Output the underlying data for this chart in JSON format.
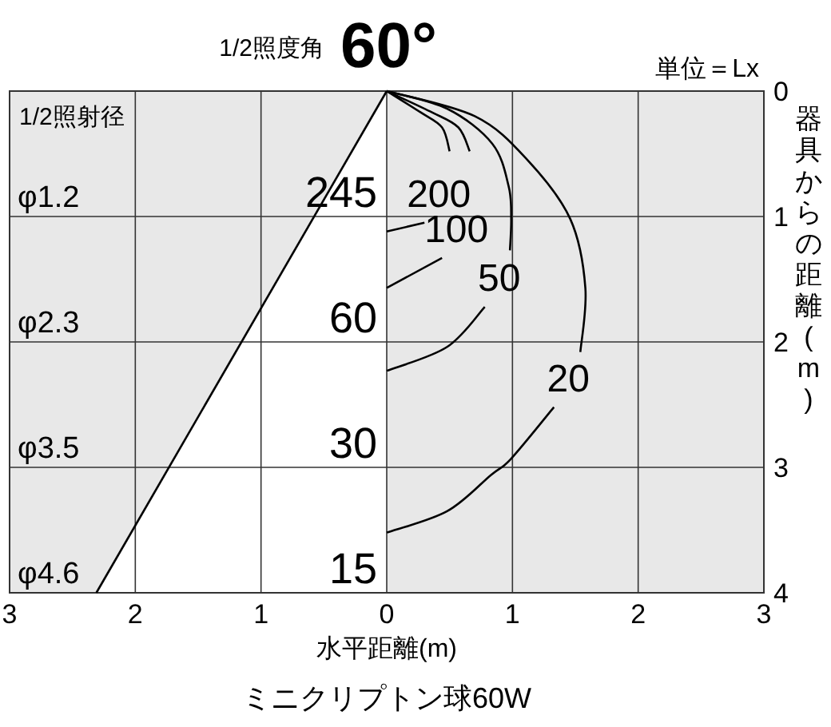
{
  "chart_data": {
    "type": "line",
    "title": "60°",
    "xlabel": "水平距離(m)",
    "ylabel": "器具からの距離(m)",
    "annotations": [
      "1/2照度角",
      "単位＝Lx",
      "1/2照射径",
      "ミニクリプトン球60W",
      "φ1.2",
      "φ2.3",
      "φ3.5",
      "φ4.6",
      "245",
      "60",
      "30",
      "15"
    ],
    "xlim": [
      -3,
      3
    ],
    "xticks": [
      {
        "value": -3,
        "label": "3"
      },
      {
        "value": -2,
        "label": "2"
      },
      {
        "value": -1,
        "label": "1"
      },
      0,
      1,
      2,
      3
    ],
    "ylim": [
      4,
      0
    ],
    "yticks": [
      0,
      1,
      2,
      3,
      4
    ],
    "grid": true,
    "series": [
      {
        "color": "#000000",
        "x": [
          0,
          -2.31
        ],
        "values": [
          0,
          4
        ]
      },
      {
        "name": "200",
        "color": "#000000",
        "x": [
          0,
          0.27,
          0.44,
          0.5,
          null,
          0.3,
          0
        ],
        "values": [
          0,
          0.17,
          0.29,
          0.48,
          null,
          1.05,
          1.12
        ]
      },
      {
        "name": "100",
        "color": "#000000",
        "x": [
          0,
          0.36,
          0.57,
          0.66,
          null,
          0.44,
          0
        ],
        "values": [
          0,
          0.17,
          0.29,
          0.48,
          null,
          1.33,
          1.57
        ]
      },
      {
        "name": "50",
        "color": "#000000",
        "x": [
          0,
          0.48,
          0.84,
          0.97,
          0.99,
          0.98,
          null,
          0.78,
          0.48,
          0
        ],
        "values": [
          0,
          0.14,
          0.42,
          0.76,
          1.02,
          1.27,
          null,
          1.72,
          2.04,
          2.23
        ]
      },
      {
        "name": "20",
        "color": "#000000",
        "x": [
          0,
          0.7,
          1.12,
          1.46,
          1.58,
          1.54,
          null,
          1.33,
          0.99,
          0.83,
          0.48,
          0
        ],
        "values": [
          0,
          0.2,
          0.55,
          1.02,
          1.57,
          2.08,
          null,
          2.52,
          2.93,
          3.06,
          3.35,
          3.52
        ]
      }
    ]
  }
}
